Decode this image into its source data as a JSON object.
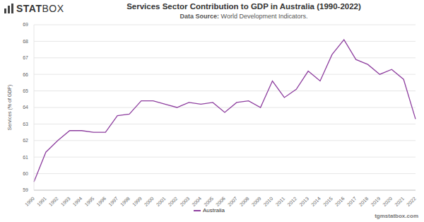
{
  "chart_data": {
    "type": "line",
    "title": "Services Sector Contribution to GDP in Australia (1990-2022)",
    "source_label": "Data Source:",
    "source": "World Development Indicators.",
    "logo": "STATBOX",
    "footer": "tgmstatbox.com",
    "y_label": "Services (% of GDP)",
    "categories": [
      "1990",
      "1991",
      "1992",
      "1993",
      "1994",
      "1995",
      "1996",
      "1997",
      "1998",
      "1999",
      "2000",
      "2001",
      "2002",
      "2003",
      "2004",
      "2005",
      "2006",
      "2007",
      "2008",
      "2009",
      "2010",
      "2011",
      "2012",
      "2013",
      "2014",
      "2015",
      "2016",
      "2017",
      "2018",
      "2019",
      "2020",
      "2021",
      "2022"
    ],
    "series": [
      {
        "name": "Australia",
        "color": "#8e3f9f",
        "values": [
          59.5,
          61.3,
          62.0,
          62.6,
          62.6,
          62.5,
          62.5,
          63.5,
          63.6,
          64.4,
          64.4,
          64.2,
          64.0,
          64.3,
          64.2,
          64.3,
          63.7,
          64.3,
          64.4,
          64.0,
          65.6,
          64.6,
          65.1,
          66.2,
          65.6,
          67.2,
          68.1,
          66.9,
          66.6,
          66.0,
          66.3,
          65.7,
          63.3
        ]
      }
    ],
    "ylim": [
      59,
      69
    ],
    "yticks": [
      59,
      60,
      61,
      62,
      63,
      64,
      65,
      66,
      67,
      68,
      69
    ],
    "grid": true,
    "legend": "bottom"
  }
}
